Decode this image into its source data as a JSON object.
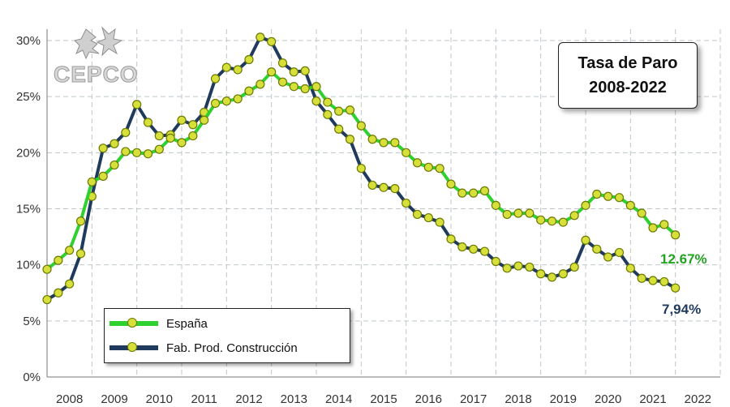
{
  "logo": {
    "text": "CEPCO"
  },
  "title_box": {
    "line1": "Tasa de Paro",
    "line2": "2008-2022"
  },
  "colors": {
    "espana": "#2fd12f",
    "fabricacion": "#1f3a5c",
    "marker_fill": "#d7e03a",
    "grid": "#bfc7cc"
  },
  "end_labels": {
    "espana": "12.67%",
    "fabricacion": "7,94%"
  },
  "chart_data": {
    "type": "line",
    "title": "",
    "xlabel": "",
    "ylabel": "",
    "ylim": [
      0,
      30
    ],
    "y_ticks": [
      "0%",
      "5%",
      "10%",
      "15%",
      "20%",
      "25%",
      "30%"
    ],
    "x_ticks": [
      "2008",
      "2009",
      "2010",
      "2011",
      "2012",
      "2013",
      "2014",
      "2015",
      "2016",
      "2017",
      "2018",
      "2019",
      "2020",
      "2021",
      "2022"
    ],
    "x_range": [
      2008.0,
      2023.0
    ],
    "grid": true,
    "legend": "bottom-left",
    "x": [
      2008.0,
      2008.25,
      2008.5,
      2008.75,
      2009.0,
      2009.25,
      2009.5,
      2009.75,
      2010.0,
      2010.25,
      2010.5,
      2010.75,
      2011.0,
      2011.25,
      2011.5,
      2011.75,
      2012.0,
      2012.25,
      2012.5,
      2012.75,
      2013.0,
      2013.25,
      2013.5,
      2013.75,
      2014.0,
      2014.25,
      2014.5,
      2014.75,
      2015.0,
      2015.25,
      2015.5,
      2015.75,
      2016.0,
      2016.25,
      2016.5,
      2016.75,
      2017.0,
      2017.25,
      2017.5,
      2017.75,
      2018.0,
      2018.25,
      2018.5,
      2018.75,
      2019.0,
      2019.25,
      2019.5,
      2019.75,
      2020.0,
      2020.25,
      2020.5,
      2020.75,
      2021.0,
      2021.25,
      2021.5,
      2021.75,
      2022.0
    ],
    "series": [
      {
        "name": "España",
        "values": [
          9.6,
          10.4,
          11.3,
          13.9,
          17.4,
          17.9,
          18.9,
          20.1,
          20.0,
          19.9,
          20.3,
          21.3,
          20.9,
          21.5,
          22.9,
          24.4,
          24.6,
          24.8,
          25.5,
          26.1,
          27.2,
          26.3,
          25.9,
          25.7,
          25.9,
          24.5,
          23.7,
          23.8,
          22.4,
          21.2,
          20.9,
          20.9,
          20.0,
          19.1,
          18.7,
          18.6,
          17.2,
          16.4,
          16.4,
          16.6,
          15.3,
          14.5,
          14.6,
          14.6,
          14.0,
          13.9,
          13.8,
          14.4,
          15.3,
          16.3,
          16.1,
          16.0,
          15.3,
          14.6,
          13.3,
          13.6,
          12.67
        ]
      },
      {
        "name": "Fab. Prod. Construcción",
        "values": [
          6.9,
          7.5,
          8.3,
          11.0,
          16.1,
          20.4,
          20.8,
          21.8,
          24.3,
          22.7,
          21.5,
          21.6,
          22.9,
          22.5,
          23.6,
          26.6,
          27.6,
          27.4,
          28.3,
          30.3,
          29.9,
          28.0,
          27.2,
          27.3,
          24.6,
          23.4,
          22.1,
          21.2,
          18.6,
          17.1,
          16.9,
          16.8,
          15.5,
          14.5,
          14.2,
          13.8,
          12.3,
          11.6,
          11.4,
          11.2,
          10.3,
          9.7,
          9.9,
          9.8,
          9.2,
          8.9,
          9.2,
          9.8,
          12.2,
          11.4,
          10.7,
          11.1,
          9.7,
          8.8,
          8.6,
          8.5,
          7.94
        ]
      }
    ]
  }
}
